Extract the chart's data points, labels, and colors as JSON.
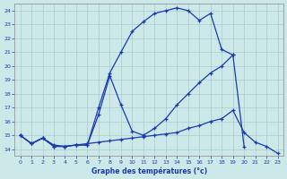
{
  "bg_color": "#cce8e8",
  "line_color": "#1a3aad",
  "grid_color": "#aacccc",
  "xlim": [
    -0.5,
    23.5
  ],
  "ylim": [
    13.5,
    24.5
  ],
  "yticks": [
    14,
    15,
    16,
    17,
    18,
    19,
    20,
    21,
    22,
    23,
    24
  ],
  "xticks": [
    0,
    1,
    2,
    3,
    4,
    5,
    6,
    7,
    8,
    9,
    10,
    11,
    12,
    13,
    14,
    15,
    16,
    17,
    18,
    19,
    20,
    21,
    22,
    23
  ],
  "xlabel": "Graphe des températures (°c)",
  "curve_top_x": [
    0,
    1,
    2,
    3,
    4,
    5,
    6,
    7,
    8,
    9,
    10,
    11,
    12,
    13,
    14,
    15,
    16,
    17,
    18,
    19
  ],
  "curve_top_y": [
    15.0,
    14.4,
    14.8,
    14.2,
    14.2,
    14.3,
    14.3,
    17.0,
    19.5,
    21.0,
    22.5,
    23.2,
    23.8,
    24.0,
    24.2,
    24.0,
    23.3,
    23.8,
    21.2,
    20.8
  ],
  "curve_mid_x": [
    0,
    1,
    2,
    3,
    4,
    5,
    6,
    7,
    8,
    9,
    10,
    11,
    12,
    13,
    14,
    15,
    16,
    17,
    18,
    19,
    20
  ],
  "curve_mid_y": [
    15.0,
    14.4,
    14.8,
    14.2,
    14.2,
    14.3,
    14.3,
    16.5,
    19.3,
    17.2,
    15.3,
    15.0,
    15.5,
    16.2,
    17.2,
    18.0,
    18.8,
    19.5,
    20.0,
    20.8,
    14.2
  ],
  "curve_bot_x": [
    0,
    1,
    2,
    3,
    4,
    5,
    6,
    7,
    8,
    9,
    10,
    11,
    12,
    13,
    14,
    15,
    16,
    17,
    18,
    19,
    20,
    21,
    22,
    23
  ],
  "curve_bot_y": [
    15.0,
    14.4,
    14.8,
    14.3,
    14.2,
    14.3,
    14.4,
    14.5,
    14.6,
    14.7,
    14.8,
    14.9,
    15.0,
    15.1,
    15.2,
    15.5,
    15.7,
    16.0,
    16.2,
    16.8,
    15.2,
    14.5,
    14.2,
    13.7
  ]
}
